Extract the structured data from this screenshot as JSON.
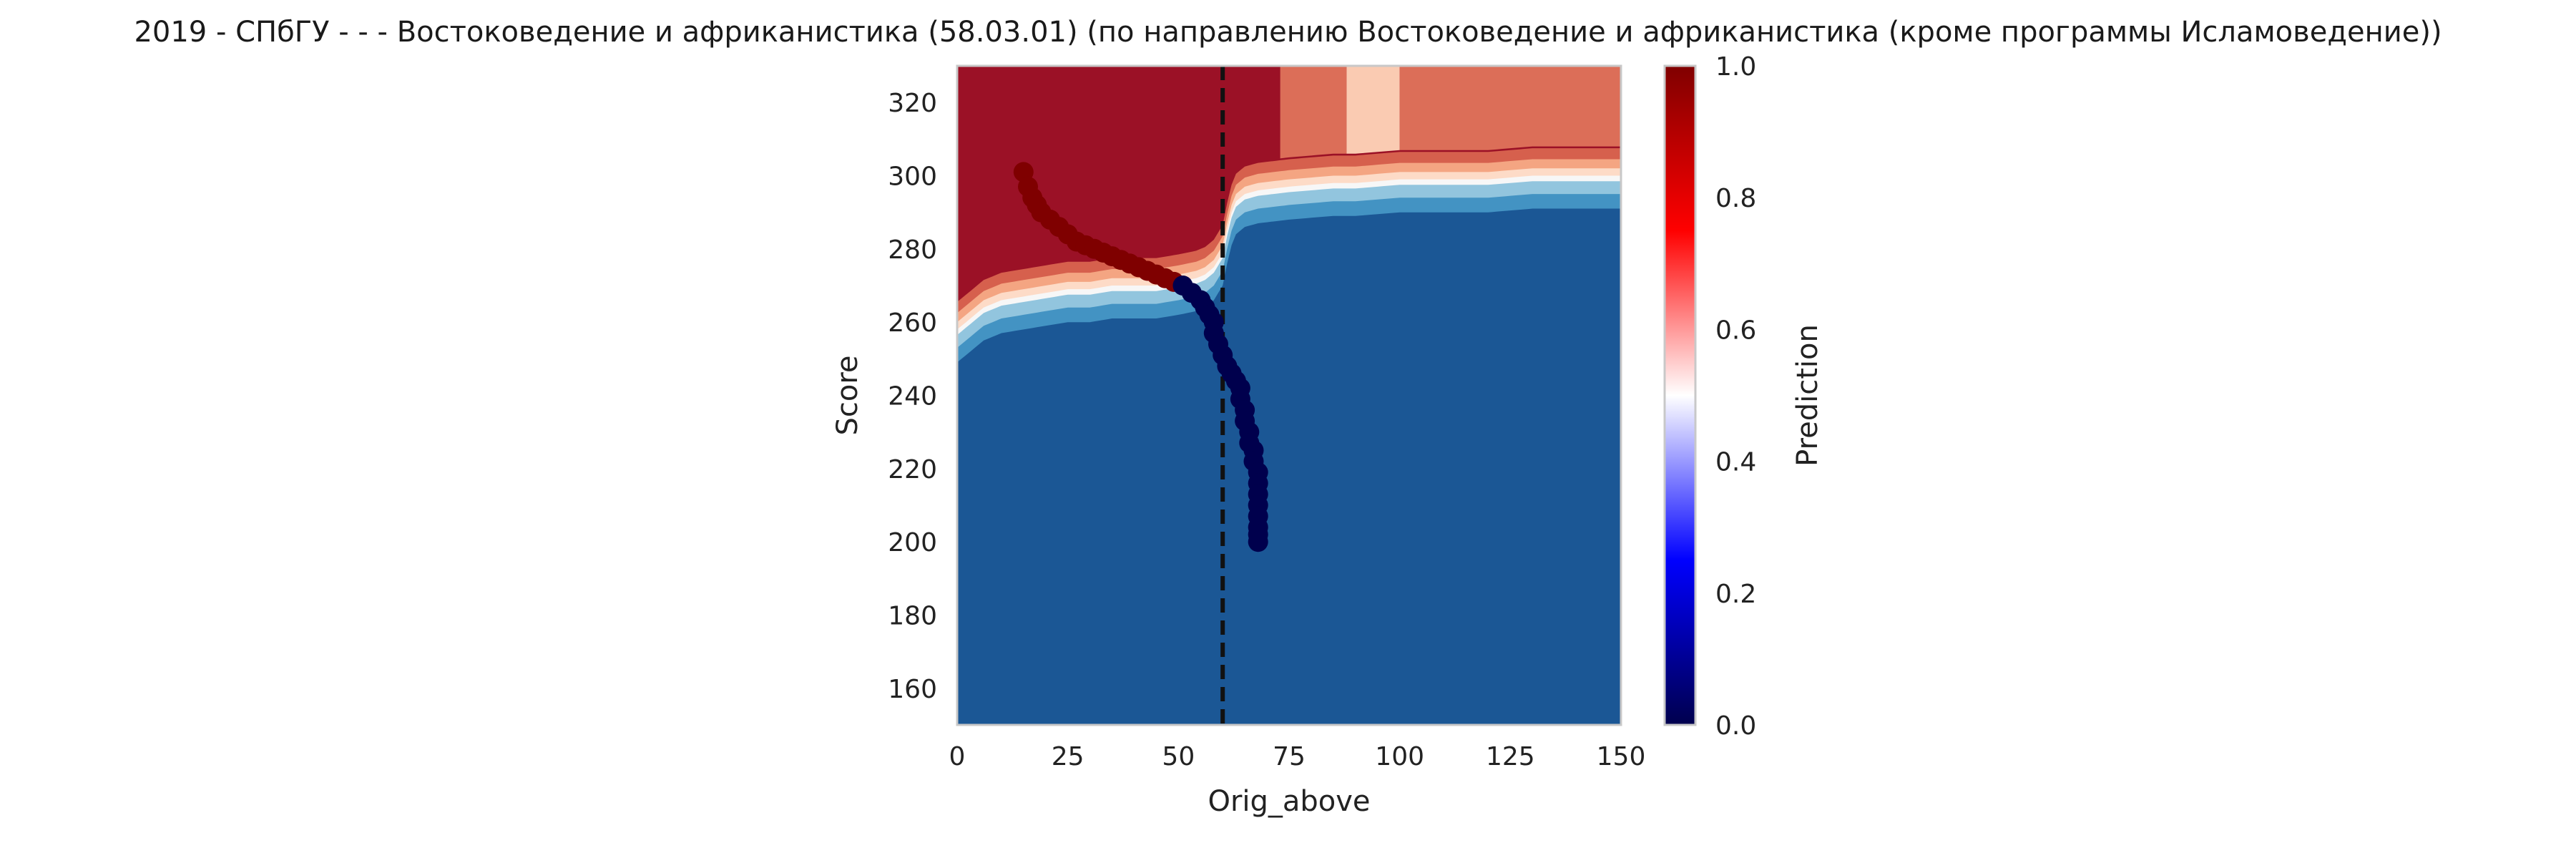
{
  "chart_data": {
    "type": "heatmap",
    "title": "2019 - СПбГУ - - - Востоковедение и африканистика (58.03.01) (по направлению Востоковедение и африканистика (кроме программы Исламоведение))",
    "xlabel": "Orig_above",
    "ylabel": "Score",
    "xlim": [
      0,
      150
    ],
    "ylim": [
      150,
      330
    ],
    "x_ticks": [
      "0",
      "25",
      "50",
      "75",
      "100",
      "125",
      "150"
    ],
    "y_ticks": [
      "160",
      "180",
      "200",
      "220",
      "240",
      "260",
      "280",
      "300",
      "320"
    ],
    "grid": false,
    "colorbar": {
      "label": "Prediction",
      "range": [
        0,
        1
      ],
      "ticks": [
        "0.0",
        "0.2",
        "0.4",
        "0.6",
        "0.8",
        "1.0"
      ],
      "colormap": "seismic",
      "contour_colormap": "RdBu_r"
    },
    "vertical_line": {
      "x": 60,
      "style": "dashed",
      "color": "#111111"
    },
    "decision_boundary": {
      "x": [
        0,
        3,
        6,
        10,
        15,
        20,
        25,
        30,
        35,
        40,
        45,
        50,
        54,
        56,
        58,
        60,
        61,
        62,
        63,
        65,
        68,
        75,
        85,
        90,
        100,
        110,
        120,
        130,
        150
      ],
      "score": [
        258,
        261,
        264,
        266,
        267,
        268,
        269,
        269,
        270,
        270,
        270,
        271,
        272,
        273,
        275,
        279,
        285,
        290,
        293,
        295,
        296,
        297,
        298,
        298,
        299,
        299,
        299,
        300,
        300
      ]
    },
    "contour_bands_upper_right": [
      {
        "x_range": [
          73,
          88
        ],
        "level": 0.78
      },
      {
        "x_range": [
          88,
          100
        ],
        "level": 0.63
      },
      {
        "x_range": [
          100,
          150
        ],
        "level": 0.78
      }
    ],
    "scatter_points": {
      "x": [
        15,
        16,
        17,
        18,
        19,
        21,
        23,
        25,
        27,
        29,
        31,
        33,
        35,
        37,
        39,
        41,
        43,
        45,
        47,
        49,
        51,
        53,
        55,
        56,
        57,
        58,
        58,
        59,
        60,
        61,
        62,
        63,
        64,
        64,
        65,
        65,
        66,
        66,
        67,
        67,
        68,
        68,
        68,
        68,
        68,
        68,
        68,
        68
      ],
      "y": [
        301,
        297,
        294,
        292,
        290,
        288,
        286,
        284,
        282,
        281,
        280,
        279,
        278,
        277,
        276,
        275,
        274,
        273,
        272,
        271,
        270,
        268,
        266,
        264,
        262,
        260,
        257,
        254,
        251,
        248,
        246,
        244,
        242,
        239,
        236,
        233,
        230,
        227,
        225,
        222,
        219,
        216,
        213,
        210,
        207,
        204,
        202,
        200
      ],
      "prediction": [
        1,
        1,
        1,
        1,
        1,
        1,
        1,
        1,
        1,
        1,
        1,
        1,
        1,
        1,
        1,
        1,
        1,
        1,
        1,
        1,
        0,
        0,
        0,
        0,
        0,
        0,
        0,
        0,
        0,
        0,
        0,
        0,
        0,
        0,
        0,
        0,
        0,
        0,
        0,
        0,
        0,
        0,
        0,
        0,
        0,
        0,
        0,
        0
      ]
    }
  }
}
